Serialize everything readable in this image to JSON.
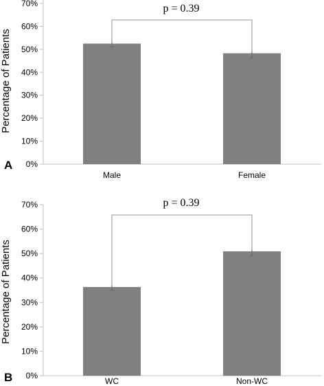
{
  "chart_data": [
    {
      "type": "bar",
      "panel_label": "A",
      "categories": [
        "Male",
        "Female"
      ],
      "values": [
        52.5,
        48.3
      ],
      "errors": [
        1.5,
        2.0
      ],
      "ylabel": "Percentage of Patients",
      "ylim": [
        0,
        70
      ],
      "yticks": [
        "0%",
        "10%",
        "20%",
        "30%",
        "40%",
        "50%",
        "60%",
        "70%"
      ],
      "annotation": "p = 0.39",
      "colors": {
        "bar": "#808080",
        "bracket": "#aaaaaa"
      }
    },
    {
      "type": "bar",
      "panel_label": "B",
      "categories": [
        "WC",
        "Non-WC"
      ],
      "values": [
        36.3,
        50.9
      ],
      "errors": [
        1.3,
        1.8
      ],
      "ylabel": "Percentage of Patients",
      "ylim": [
        0,
        70
      ],
      "yticks": [
        "0%",
        "10%",
        "20%",
        "30%",
        "40%",
        "50%",
        "60%",
        "70%"
      ],
      "annotation": "p = 0.39",
      "colors": {
        "bar": "#808080",
        "bracket": "#aaaaaa"
      }
    }
  ]
}
